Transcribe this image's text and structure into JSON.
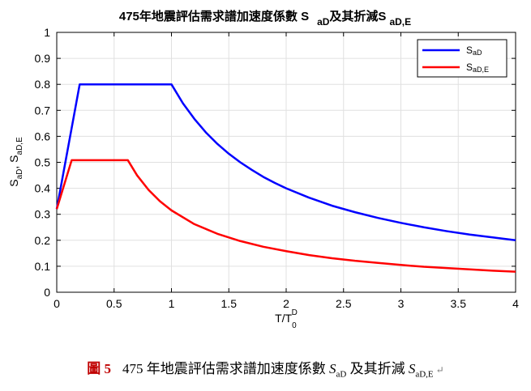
{
  "chart_data": {
    "type": "line",
    "title": {
      "main": "475年地震評估需求譜加速度係數 S",
      "sub1": "aD",
      "mid": "及其折減S",
      "sub2": "aD,E"
    },
    "xlabel": {
      "main": "T/T",
      "sub": "0",
      "sup": "D"
    },
    "ylabel": {
      "main": "S",
      "sub1": "aD",
      "sep": ", S",
      "sub2": "aD,E"
    },
    "xlim": [
      0,
      4
    ],
    "ylim": [
      0,
      1
    ],
    "xticks": [
      "0",
      "0.5",
      "1",
      "1.5",
      "2",
      "2.5",
      "3",
      "3.5",
      "4"
    ],
    "yticks": [
      "0",
      "0.1",
      "0.2",
      "0.3",
      "0.4",
      "0.5",
      "0.6",
      "0.7",
      "0.8",
      "0.9",
      "1"
    ],
    "grid": true,
    "legend_position": "top-right",
    "series": [
      {
        "name": "S",
        "name_sub": "aD",
        "color": "#0000ff",
        "x": [
          0,
          0.2,
          1.0,
          1.1,
          1.2,
          1.3,
          1.4,
          1.5,
          1.6,
          1.7,
          1.8,
          1.9,
          2.0,
          2.2,
          2.4,
          2.6,
          2.8,
          3.0,
          3.2,
          3.4,
          3.6,
          3.8,
          4.0
        ],
        "y": [
          0.32,
          0.8,
          0.8,
          0.727,
          0.667,
          0.615,
          0.571,
          0.533,
          0.5,
          0.471,
          0.444,
          0.421,
          0.4,
          0.364,
          0.333,
          0.308,
          0.286,
          0.267,
          0.25,
          0.235,
          0.222,
          0.211,
          0.2
        ]
      },
      {
        "name": "S",
        "name_sub": "aD,E",
        "color": "#ff0000",
        "x": [
          0,
          0.13,
          0.62,
          0.7,
          0.8,
          0.9,
          1.0,
          1.2,
          1.4,
          1.6,
          1.8,
          2.0,
          2.2,
          2.4,
          2.6,
          2.8,
          3.0,
          3.2,
          3.4,
          3.6,
          3.8,
          4.0
        ],
        "y": [
          0.32,
          0.508,
          0.508,
          0.45,
          0.394,
          0.35,
          0.315,
          0.262,
          0.225,
          0.197,
          0.175,
          0.158,
          0.143,
          0.131,
          0.121,
          0.113,
          0.105,
          0.098,
          0.093,
          0.088,
          0.083,
          0.079
        ]
      }
    ]
  },
  "caption": {
    "figure_label": "圖 5",
    "text": "475 年地震評估需求譜加速度係數",
    "sym1": "S",
    "sub1": "aD",
    "mid": "及其折減",
    "sym2": "S",
    "sub2": "aD,E",
    "return_mark": "↵"
  }
}
